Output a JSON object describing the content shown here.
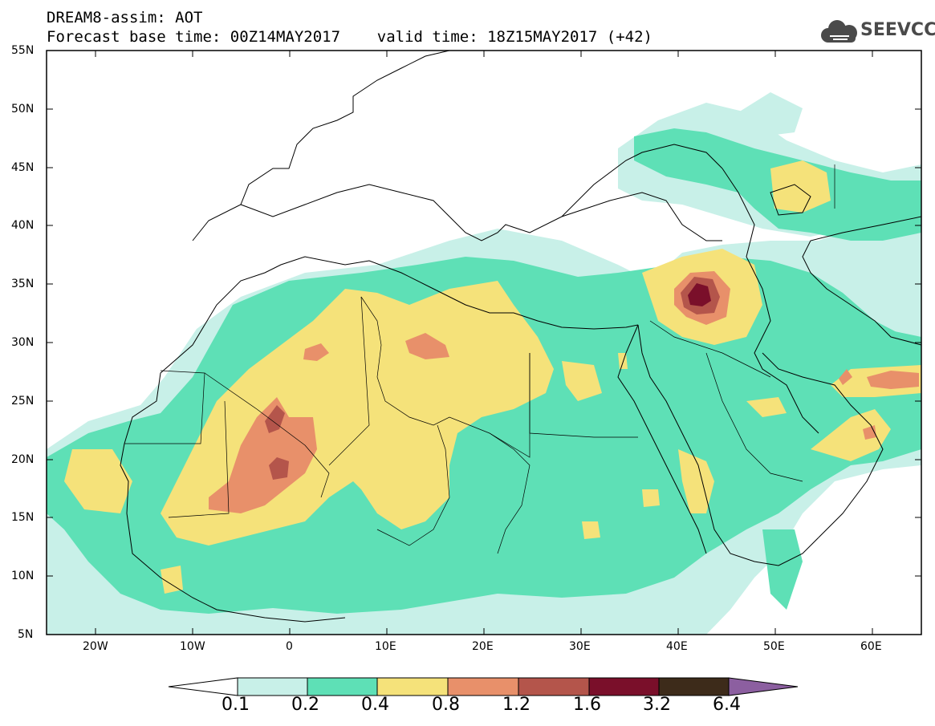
{
  "header": {
    "line1": "DREAM8-assim: AOT",
    "line2": "Forecast base time: 00Z14MAY2017    valid time: 18Z15MAY2017 (+42)"
  },
  "logo": {
    "text": "SEEVCCC",
    "icon": "cloud-icon"
  },
  "map": {
    "lon_range": [
      -25,
      65
    ],
    "lat_range": [
      5,
      55
    ],
    "lat_labels": [
      "55N",
      "50N",
      "45N",
      "40N",
      "35N",
      "30N",
      "25N",
      "20N",
      "15N",
      "10N",
      "5N"
    ],
    "lon_labels": [
      "20W",
      "10W",
      "0",
      "10E",
      "20E",
      "30E",
      "40E",
      "50E",
      "60E"
    ]
  },
  "colorbar": {
    "levels": [
      "0.1",
      "0.2",
      "0.4",
      "0.8",
      "1.2",
      "1.6",
      "3.2",
      "6.4"
    ],
    "colors": [
      "#ffffff",
      "#c8f0e8",
      "#5ee0b6",
      "#f5e27a",
      "#e8906a",
      "#b4554b",
      "#7a0f2a",
      "#3d2b1a",
      "#8c5fa0"
    ]
  }
}
